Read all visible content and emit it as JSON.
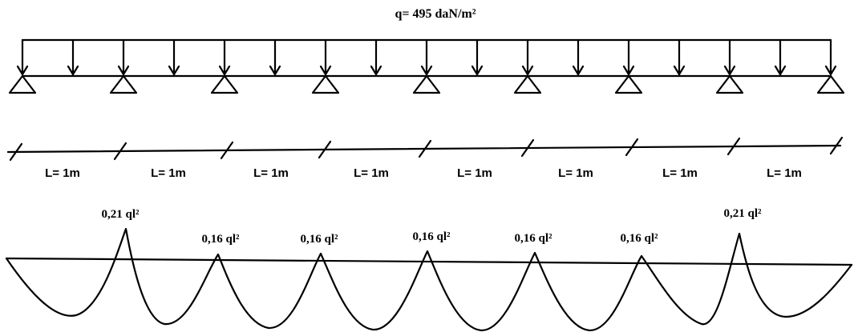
{
  "load": {
    "label": "q= 495 daN/m²"
  },
  "spans": [
    {
      "label": "L= 1m"
    },
    {
      "label": "L= 1m"
    },
    {
      "label": "L= 1m"
    },
    {
      "label": "L= 1m"
    },
    {
      "label": "L= 1m"
    },
    {
      "label": "L= 1m"
    },
    {
      "label": "L= 1m"
    },
    {
      "label": "L= 1m"
    }
  ],
  "supports_count": 9,
  "moments": [
    {
      "label": "0,21 ql²"
    },
    {
      "label": "0,16 ql²"
    },
    {
      "label": "0,16 ql²"
    },
    {
      "label": "0,16 ql²"
    },
    {
      "label": "0,16 ql²"
    },
    {
      "label": "0,16 ql²"
    },
    {
      "label": "0,21 ql²"
    }
  ]
}
